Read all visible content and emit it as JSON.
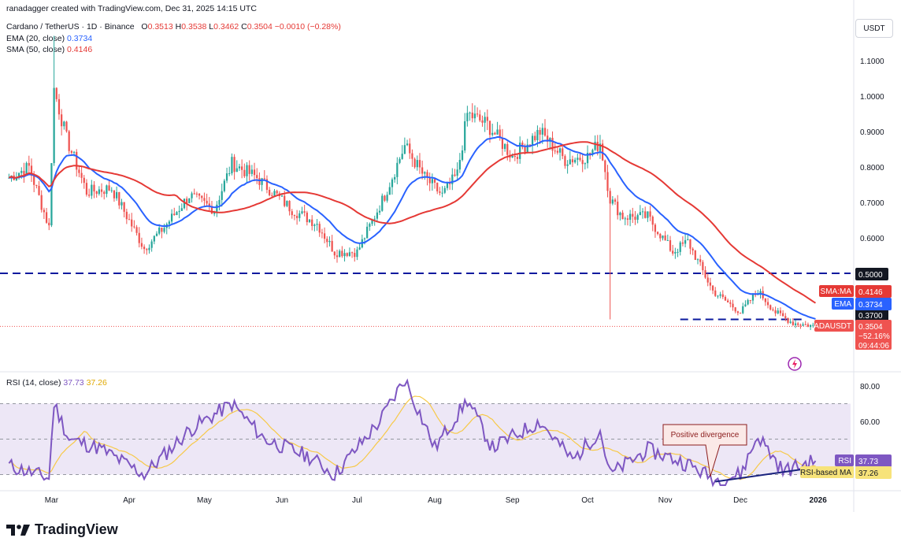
{
  "header": {
    "created_by": "ranadagger created with TradingView.com, Dec 31, 2025 14:15 UTC",
    "symbol": "Cardano / TetherUS · 1D · Binance",
    "ohlc": {
      "o_label": "O",
      "o": "0.3513",
      "h_label": "H",
      "h": "0.3538",
      "l_label": "L",
      "l": "0.3462",
      "c_label": "C",
      "c": "0.3504",
      "chg": "−0.0010 (−0.28%)"
    },
    "ema_label": "EMA (20, close)",
    "ema_value": "0.3734",
    "sma_label": "SMA (50, close)",
    "sma_value": "0.4146",
    "currency": "USDT"
  },
  "rsi_header": {
    "label": "RSI (14, close)",
    "rsi": "37.73",
    "rsi_ma": "37.26"
  },
  "price_scale": [
    "1.1000",
    "1.0000",
    "0.9000",
    "0.8000",
    "0.7000",
    "0.6000"
  ],
  "rsi_scale": [
    "80.00",
    "60.00"
  ],
  "time_axis": [
    "Mar",
    "Apr",
    "May",
    "Jun",
    "Jul",
    "Aug",
    "Sep",
    "Oct",
    "Nov",
    "Dec",
    "2026"
  ],
  "tags": {
    "level_050": "0.5000",
    "sma_tag": "SMA:MA",
    "sma_val": "0.4146",
    "ema_tag": "EMA",
    "ema_val": "0.3734",
    "level_037": "0.3700",
    "ticker": "ADAUSDT",
    "ticker_val": "0.3504",
    "ticker_pct": "−52.16%",
    "ticker_time": "09:44:06",
    "rsi_tag": "RSI",
    "rsi_val": "37.73",
    "rsima_tag": "RSI-based MA",
    "rsima_val": "37.26"
  },
  "annotation": "Positive divergence",
  "brand": "TradingView",
  "colors": {
    "up": "#26a69a",
    "down": "#ef5350",
    "ema": "#2962ff",
    "sma": "#e53935",
    "rsi": "#7e57c2",
    "rsi_ma": "#f7c948",
    "level": "#0b1a9e",
    "rsi_band": "#ede7f6"
  },
  "chart_data": [
    {
      "type": "candlestick",
      "title": "Cardano / TetherUS · 1D · Binance",
      "ylim": [
        0.38,
        1.18
      ],
      "y_ticks": [
        1.1,
        1.0,
        0.9,
        0.8,
        0.7,
        0.6
      ],
      "x_labels": [
        "Mar",
        "Apr",
        "May",
        "Jun",
        "Jul",
        "Aug",
        "Sep",
        "Oct",
        "Nov",
        "Dec",
        "2026"
      ],
      "horizontal_levels": [
        0.5,
        0.37
      ],
      "close_anchors": [
        {
          "t": "2025-02-12",
          "c": 0.77
        },
        {
          "t": "2025-02-20",
          "c": 0.8
        },
        {
          "t": "2025-02-28",
          "c": 0.63
        },
        {
          "t": "2025-03-02",
          "c": 1.02
        },
        {
          "t": "2025-03-07",
          "c": 0.88
        },
        {
          "t": "2025-03-15",
          "c": 0.73
        },
        {
          "t": "2025-03-25",
          "c": 0.74
        },
        {
          "t": "2025-04-07",
          "c": 0.57
        },
        {
          "t": "2025-04-15",
          "c": 0.63
        },
        {
          "t": "2025-04-25",
          "c": 0.72
        },
        {
          "t": "2025-05-05",
          "c": 0.68
        },
        {
          "t": "2025-05-12",
          "c": 0.81
        },
        {
          "t": "2025-05-22",
          "c": 0.77
        },
        {
          "t": "2025-06-05",
          "c": 0.68
        },
        {
          "t": "2025-06-15",
          "c": 0.64
        },
        {
          "t": "2025-06-22",
          "c": 0.56
        },
        {
          "t": "2025-07-01",
          "c": 0.56
        },
        {
          "t": "2025-07-12",
          "c": 0.72
        },
        {
          "t": "2025-07-20",
          "c": 0.86
        },
        {
          "t": "2025-07-28",
          "c": 0.77
        },
        {
          "t": "2025-08-04",
          "c": 0.72
        },
        {
          "t": "2025-08-10",
          "c": 0.78
        },
        {
          "t": "2025-08-14",
          "c": 0.95
        },
        {
          "t": "2025-08-22",
          "c": 0.92
        },
        {
          "t": "2025-09-01",
          "c": 0.83
        },
        {
          "t": "2025-09-12",
          "c": 0.9
        },
        {
          "t": "2025-09-22",
          "c": 0.82
        },
        {
          "t": "2025-10-01",
          "c": 0.83
        },
        {
          "t": "2025-10-06",
          "c": 0.87
        },
        {
          "t": "2025-10-10",
          "c": 0.71
        },
        {
          "t": "2025-10-15",
          "c": 0.66
        },
        {
          "t": "2025-10-25",
          "c": 0.66
        },
        {
          "t": "2025-11-04",
          "c": 0.56
        },
        {
          "t": "2025-11-10",
          "c": 0.59
        },
        {
          "t": "2025-11-20",
          "c": 0.45
        },
        {
          "t": "2025-12-01",
          "c": 0.39
        },
        {
          "t": "2025-12-08",
          "c": 0.45
        },
        {
          "t": "2025-12-15",
          "c": 0.39
        },
        {
          "t": "2025-12-22",
          "c": 0.36
        },
        {
          "t": "2025-12-31",
          "c": 0.3504
        }
      ],
      "series": [
        {
          "name": "EMA (20, close)",
          "last": 0.3734
        },
        {
          "name": "SMA (50, close)",
          "last": 0.4146
        }
      ],
      "flash_crash_low": {
        "t": "2025-10-10",
        "low": 0.37
      }
    },
    {
      "type": "line",
      "title": "RSI (14, close)",
      "ylim": [
        20,
        90
      ],
      "y_ticks": [
        80,
        60
      ],
      "bands": [
        70,
        30
      ],
      "rsi_anchors": [
        {
          "t": "2025-02-12",
          "v": 35
        },
        {
          "t": "2025-02-28",
          "v": 28
        },
        {
          "t": "2025-03-02",
          "v": 70
        },
        {
          "t": "2025-03-08",
          "v": 50
        },
        {
          "t": "2025-03-20",
          "v": 45
        },
        {
          "t": "2025-04-07",
          "v": 30
        },
        {
          "t": "2025-04-25",
          "v": 55
        },
        {
          "t": "2025-05-12",
          "v": 70
        },
        {
          "t": "2025-05-25",
          "v": 50
        },
        {
          "t": "2025-06-12",
          "v": 40
        },
        {
          "t": "2025-06-22",
          "v": 30
        },
        {
          "t": "2025-07-10",
          "v": 60
        },
        {
          "t": "2025-07-20",
          "v": 84
        },
        {
          "t": "2025-08-01",
          "v": 45
        },
        {
          "t": "2025-08-14",
          "v": 72
        },
        {
          "t": "2025-08-24",
          "v": 45
        },
        {
          "t": "2025-09-12",
          "v": 60
        },
        {
          "t": "2025-09-25",
          "v": 38
        },
        {
          "t": "2025-10-06",
          "v": 55
        },
        {
          "t": "2025-10-10",
          "v": 30
        },
        {
          "t": "2025-10-25",
          "v": 44
        },
        {
          "t": "2025-11-10",
          "v": 36
        },
        {
          "t": "2025-11-21",
          "v": 27
        },
        {
          "t": "2025-12-01",
          "v": 30
        },
        {
          "t": "2025-12-08",
          "v": 52
        },
        {
          "t": "2025-12-18",
          "v": 32
        },
        {
          "t": "2025-12-31",
          "v": 37.73
        }
      ],
      "series": [
        {
          "name": "RSI",
          "last": 37.73
        },
        {
          "name": "RSI-based MA",
          "last": 37.26
        }
      ],
      "divergence_line": [
        {
          "t": "2025-11-21",
          "v": 26
        },
        {
          "t": "2025-12-31",
          "v": 34
        }
      ],
      "annotations": [
        "Positive divergence"
      ]
    }
  ]
}
